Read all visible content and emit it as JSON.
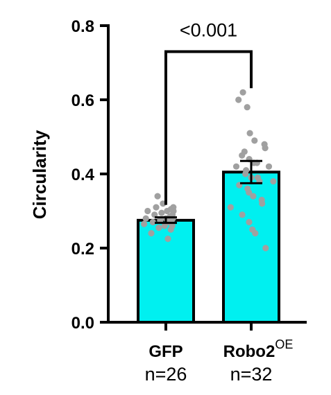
{
  "chart_data": {
    "type": "bar",
    "ylabel": "Circularity",
    "ylim": [
      0,
      0.8
    ],
    "yticks": [
      "0.0",
      "0.2",
      "0.4",
      "0.6",
      "0.8"
    ],
    "bar_color": "#00f0f0",
    "point_color": "#a0a0a0",
    "categories": [
      {
        "label": "GFP",
        "superscript": "",
        "n_label": "n=26",
        "mean": 0.275,
        "error_low": 0.268,
        "error_high": 0.283,
        "points": [
          0.34,
          0.32,
          0.31,
          0.31,
          0.305,
          0.3,
          0.3,
          0.3,
          0.295,
          0.29,
          0.29,
          0.285,
          0.28,
          0.28,
          0.28,
          0.275,
          0.275,
          0.27,
          0.27,
          0.265,
          0.26,
          0.26,
          0.255,
          0.25,
          0.24,
          0.225
        ]
      },
      {
        "label": "Robo2",
        "superscript": "OE",
        "n_label": "n=32",
        "mean": 0.405,
        "error_low": 0.375,
        "error_high": 0.435,
        "points": [
          0.62,
          0.6,
          0.58,
          0.51,
          0.49,
          0.48,
          0.47,
          0.46,
          0.45,
          0.44,
          0.43,
          0.43,
          0.42,
          0.42,
          0.41,
          0.4,
          0.39,
          0.39,
          0.38,
          0.38,
          0.37,
          0.36,
          0.35,
          0.34,
          0.33,
          0.32,
          0.31,
          0.29,
          0.27,
          0.25,
          0.24,
          0.2
        ]
      }
    ],
    "significance": {
      "label": "<0.001",
      "from": 0,
      "to": 1,
      "y": 0.73
    }
  }
}
